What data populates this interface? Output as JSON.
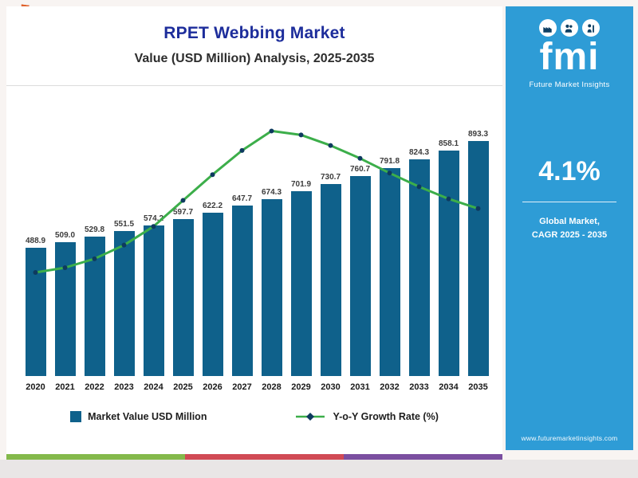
{
  "chart": {
    "title": "RPET Webbing Market",
    "subtitle": "Value (USD Million) Analysis, 2025-2035"
  },
  "chart_data": {
    "type": "bar",
    "title": "RPET Webbing Market",
    "subtitle": "Value (USD Million) Analysis, 2025-2035",
    "categories": [
      "2020",
      "2021",
      "2022",
      "2023",
      "2024",
      "2025",
      "2026",
      "2027",
      "2028",
      "2029",
      "2030",
      "2031",
      "2032",
      "2033",
      "2034",
      "2035"
    ],
    "series": [
      {
        "name": "Market Value USD Million",
        "kind": "bar",
        "values": [
          488.9,
          509.0,
          529.8,
          551.5,
          574.2,
          597.7,
          622.2,
          647.7,
          674.3,
          701.9,
          730.7,
          760.7,
          791.8,
          824.3,
          858.1,
          893.3
        ],
        "value_labels": [
          "488.9",
          "509.0",
          "529.8",
          "551.5",
          "574.2",
          "597.7",
          "622.2",
          "647.7",
          "674.3",
          "701.9",
          "730.7",
          "760.7",
          "791.8",
          "824.3",
          "858.1",
          "893.3"
        ],
        "color": "#0f618b"
      },
      {
        "name": "Y-o-Y Growth Rate (%)",
        "kind": "line",
        "values_labeled": false,
        "points_norm": [
          0.394,
          0.412,
          0.446,
          0.498,
          0.569,
          0.668,
          0.766,
          0.858,
          0.932,
          0.917,
          0.877,
          0.828,
          0.772,
          0.72,
          0.674,
          0.637
        ],
        "color": "#3cae4a",
        "marker_color": "#0e3a5f"
      }
    ],
    "xlabel": "",
    "ylabel": "",
    "ylim": [
      0,
      950
    ],
    "grid": false,
    "legend_position": "bottom"
  },
  "side_panel": {
    "logo_text": "fmi",
    "logo_subtext": "Future Market Insights",
    "cagr_value": "4.1%",
    "cagr_label_line1": "Global Market,",
    "cagr_label_line2": "CAGR 2025 - 2035",
    "website": "www.futuremarketinsights.com"
  },
  "colors": {
    "bar": "#0f618b",
    "line": "#3cae4a",
    "marker": "#0e3a5f",
    "title": "#1d2d9b",
    "panel": "#2e9cd6",
    "stripe1": "#84b94b",
    "stripe2": "#d14a55",
    "stripe3": "#7b4fa0"
  }
}
